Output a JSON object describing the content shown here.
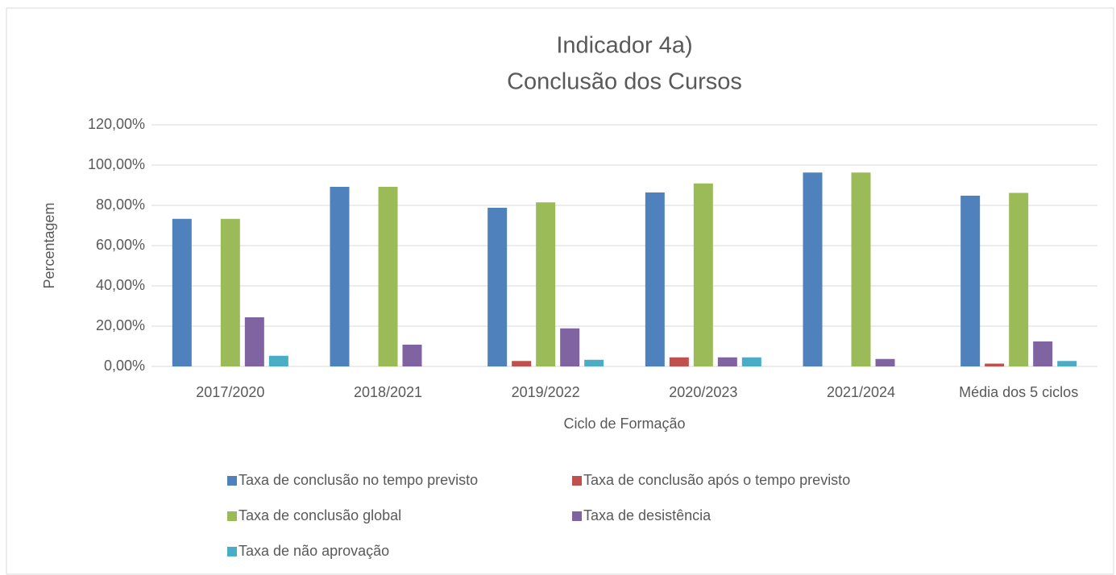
{
  "chart_data": {
    "type": "bar",
    "title": "Indicador 4a)",
    "subtitle": "Conclusão dos Cursos",
    "x_label": "Ciclo de Formação",
    "y_label": "Percentagem",
    "categories": [
      "2017/2020",
      "2018/2021",
      "2019/2022",
      "2020/2023",
      "2021/2024",
      "Média dos 5 ciclos"
    ],
    "series": [
      {
        "name": "Taxa de conclusão no tempo previsto",
        "color": "#4f81bd",
        "values": [
          73.3,
          89.2,
          78.8,
          86.4,
          96.3,
          84.8
        ]
      },
      {
        "name": "Taxa de conclusão após o tempo previsto",
        "color": "#c0504d",
        "values": [
          0,
          0,
          2.7,
          4.5,
          0,
          1.4
        ]
      },
      {
        "name": "Taxa de conclusão  global",
        "color": "#9bbb59",
        "values": [
          73.3,
          89.2,
          81.5,
          90.9,
          96.3,
          86.2
        ]
      },
      {
        "name": "Taxa de desistência",
        "color": "#8064a2",
        "values": [
          24.4,
          10.8,
          18.9,
          4.5,
          3.7,
          12.4
        ]
      },
      {
        "name": "Taxa de não aprovação",
        "color": "#4bacc6",
        "values": [
          5.3,
          0,
          3.3,
          4.5,
          0,
          2.7
        ]
      }
    ],
    "ylim": [
      0,
      120
    ],
    "yticks": [
      {
        "value": 0,
        "label": "0,00%"
      },
      {
        "value": 20,
        "label": "20,00%"
      },
      {
        "value": 40,
        "label": "40,00%"
      },
      {
        "value": 60,
        "label": "60,00%"
      },
      {
        "value": 80,
        "label": "80,00%"
      },
      {
        "value": 100,
        "label": "100,00%"
      },
      {
        "value": 120,
        "label": "120,00%"
      }
    ],
    "grid": true,
    "legend": "bottom"
  }
}
